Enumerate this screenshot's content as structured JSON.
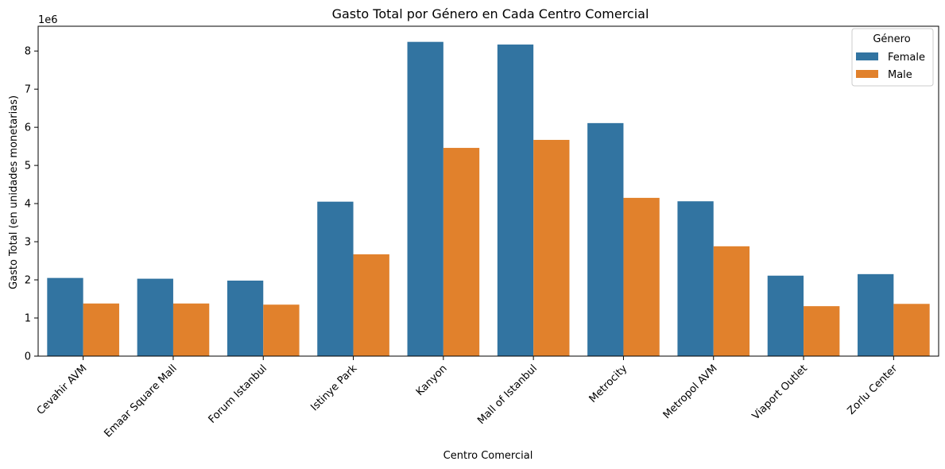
{
  "chart_data": {
    "type": "bar",
    "title": "Gasto Total por Género en Cada Centro Comercial",
    "xlabel": "Centro Comercial",
    "ylabel": "Gasto Total (en unidades monetarias)",
    "y_offset_label": "1e6",
    "categories": [
      "Cevahir AVM",
      "Emaar Square Mall",
      "Forum Istanbul",
      "Istinye Park",
      "Kanyon",
      "Mall of Istanbul",
      "Metrocity",
      "Metropol AVM",
      "Viaport Outlet",
      "Zorlu Center"
    ],
    "series": [
      {
        "name": "Female",
        "color": "#3274a1",
        "values": [
          2.05,
          2.03,
          1.98,
          4.05,
          8.24,
          8.17,
          6.11,
          4.06,
          2.11,
          2.15
        ]
      },
      {
        "name": "Male",
        "color": "#e1812c",
        "values": [
          1.38,
          1.38,
          1.35,
          2.67,
          5.46,
          5.67,
          4.15,
          2.88,
          1.31,
          1.37
        ]
      }
    ],
    "ylim": [
      0,
      8.65
    ],
    "yticks": [
      0,
      1,
      2,
      3,
      4,
      5,
      6,
      7,
      8
    ],
    "legend": {
      "title": "Género",
      "position": "top-right"
    },
    "grid": false
  }
}
